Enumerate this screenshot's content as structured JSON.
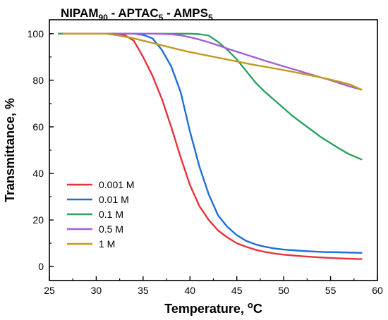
{
  "chart_data": {
    "type": "line",
    "title": {
      "parts": [
        {
          "text": "NIPAM",
          "sub": "90"
        },
        {
          "text": " - APTAC",
          "sub": "5"
        },
        {
          "text": " - AMPS",
          "sub": "5"
        }
      ]
    },
    "xlabel": {
      "main": "Temperature, ",
      "sup": "o",
      "tail": "C"
    },
    "ylabel": "Transmittance, %",
    "xlim": [
      25,
      60
    ],
    "ylim": [
      -6,
      106
    ],
    "xticks": [
      25,
      30,
      35,
      40,
      45,
      50,
      55,
      60
    ],
    "yticks": [
      0,
      20,
      40,
      60,
      80,
      100
    ],
    "grid": false,
    "legend_position": "bottom-left",
    "series": [
      {
        "name": "0.001 M",
        "color": "#e8333a",
        "points": [
          [
            26,
            100
          ],
          [
            28,
            100
          ],
          [
            30,
            100
          ],
          [
            32,
            100
          ],
          [
            33,
            99.5
          ],
          [
            34,
            97
          ],
          [
            35,
            90
          ],
          [
            36,
            82
          ],
          [
            37,
            72
          ],
          [
            38,
            60
          ],
          [
            39,
            47
          ],
          [
            40,
            35
          ],
          [
            41,
            26
          ],
          [
            42,
            20
          ],
          [
            43,
            15.5
          ],
          [
            44,
            12.5
          ],
          [
            45,
            10
          ],
          [
            46,
            8.5
          ],
          [
            47,
            7.2
          ],
          [
            48,
            6.3
          ],
          [
            49,
            5.6
          ],
          [
            50,
            5.1
          ],
          [
            52,
            4.4
          ],
          [
            54,
            3.9
          ],
          [
            56,
            3.5
          ],
          [
            58.3,
            3.2
          ]
        ]
      },
      {
        "name": "0.01 M",
        "color": "#1f6fd6",
        "points": [
          [
            26,
            100
          ],
          [
            28,
            100
          ],
          [
            30,
            100
          ],
          [
            32,
            100
          ],
          [
            34,
            100
          ],
          [
            35,
            99.5
          ],
          [
            36,
            98
          ],
          [
            37,
            93
          ],
          [
            38,
            86
          ],
          [
            39,
            75
          ],
          [
            40,
            58
          ],
          [
            41,
            43
          ],
          [
            42,
            31
          ],
          [
            43,
            22
          ],
          [
            44,
            17
          ],
          [
            45,
            13.5
          ],
          [
            46,
            11
          ],
          [
            47,
            9.5
          ],
          [
            48,
            8.5
          ],
          [
            49,
            7.8
          ],
          [
            50,
            7.3
          ],
          [
            52,
            6.7
          ],
          [
            54,
            6.3
          ],
          [
            56,
            6.1
          ],
          [
            58.3,
            5.9
          ]
        ]
      },
      {
        "name": "0.1 M",
        "color": "#2ca25f",
        "points": [
          [
            26,
            100
          ],
          [
            30,
            100
          ],
          [
            34,
            100
          ],
          [
            38,
            100
          ],
          [
            40,
            100
          ],
          [
            41,
            99.8
          ],
          [
            42,
            99.2
          ],
          [
            43,
            96.5
          ],
          [
            44,
            93
          ],
          [
            45,
            89
          ],
          [
            46,
            84
          ],
          [
            47,
            79
          ],
          [
            48,
            75
          ],
          [
            49,
            71.5
          ],
          [
            50,
            68
          ],
          [
            51,
            64.5
          ],
          [
            52,
            61.5
          ],
          [
            53,
            58.5
          ],
          [
            54,
            55.5
          ],
          [
            55,
            53
          ],
          [
            56,
            50.5
          ],
          [
            57,
            48.2
          ],
          [
            58.3,
            46
          ]
        ]
      },
      {
        "name": "0.5 M",
        "color": "#a65fd6",
        "points": [
          [
            26.5,
            100
          ],
          [
            30,
            100
          ],
          [
            33,
            100
          ],
          [
            36,
            100
          ],
          [
            38,
            99.8
          ],
          [
            39,
            99.3
          ],
          [
            40,
            98.5
          ],
          [
            41,
            97.5
          ],
          [
            42,
            96.3
          ],
          [
            43,
            95
          ],
          [
            44,
            93.6
          ],
          [
            45,
            92.3
          ],
          [
            46,
            91
          ],
          [
            47,
            89.7
          ],
          [
            48,
            88.4
          ],
          [
            49,
            87.2
          ],
          [
            50,
            86
          ],
          [
            51,
            84.8
          ],
          [
            52,
            83.6
          ],
          [
            53,
            82.4
          ],
          [
            54,
            81.2
          ],
          [
            55,
            80
          ],
          [
            56,
            78.7
          ],
          [
            57,
            77.4
          ],
          [
            58.3,
            76
          ]
        ]
      },
      {
        "name": "1 M",
        "color": "#c29a1c",
        "points": [
          [
            26.5,
            100
          ],
          [
            28,
            100
          ],
          [
            30,
            100
          ],
          [
            31,
            100
          ],
          [
            32,
            99.5
          ],
          [
            33,
            98.8
          ],
          [
            34,
            98
          ],
          [
            35,
            97
          ],
          [
            36,
            96
          ],
          [
            37,
            95
          ],
          [
            38,
            94
          ],
          [
            39,
            93
          ],
          [
            40,
            92.1
          ],
          [
            41,
            91.3
          ],
          [
            42,
            90.5
          ],
          [
            43,
            89.7
          ],
          [
            44,
            88.9
          ],
          [
            45,
            88.1
          ],
          [
            46,
            87.3
          ],
          [
            47,
            86.5
          ],
          [
            48,
            85.8
          ],
          [
            49,
            85.1
          ],
          [
            50,
            84.4
          ],
          [
            51,
            83.6
          ],
          [
            52,
            82.8
          ],
          [
            53,
            82
          ],
          [
            54,
            81.2
          ],
          [
            55,
            80.3
          ],
          [
            56,
            79.3
          ],
          [
            57,
            78.3
          ],
          [
            58.3,
            76
          ]
        ]
      }
    ]
  }
}
